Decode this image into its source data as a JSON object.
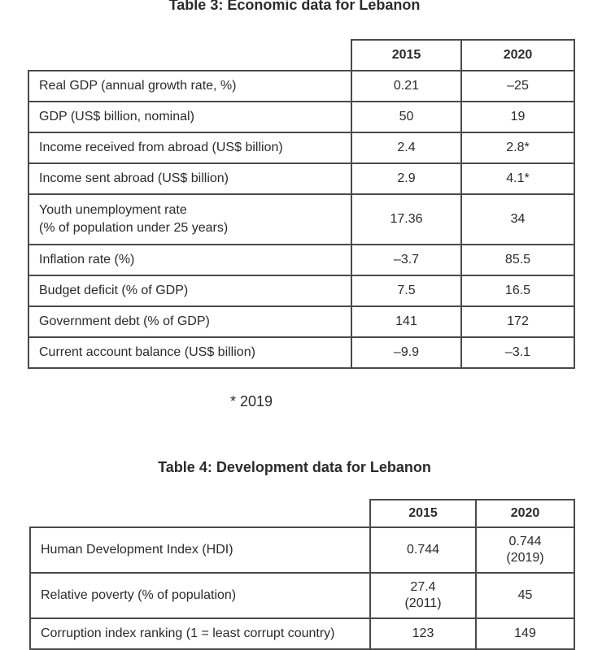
{
  "table3": {
    "title": "Table 3: Economic data for Lebanon",
    "columns": [
      "",
      "2015",
      "2020"
    ],
    "rows": [
      {
        "label": "Real GDP (annual growth rate, %)",
        "v2015": "0.21",
        "v2020": "–25"
      },
      {
        "label": "GDP (US$ billion, nominal)",
        "v2015": "50",
        "v2020": "19"
      },
      {
        "label": "Income received from abroad (US$ billion)",
        "v2015": "2.4",
        "v2020": "2.8*"
      },
      {
        "label": "Income sent abroad (US$ billion)",
        "v2015": "2.9",
        "v2020": "4.1*"
      },
      {
        "label_line1": "Youth unemployment rate",
        "label_line2": "(% of population under 25 years)",
        "v2015": "17.36",
        "v2020": "34"
      },
      {
        "label": "Inflation rate (%)",
        "v2015": "–3.7",
        "v2020": "85.5"
      },
      {
        "label": "Budget deficit (% of GDP)",
        "v2015": "7.5",
        "v2020": "16.5"
      },
      {
        "label": "Government debt (% of GDP)",
        "v2015": "141",
        "v2020": "172"
      },
      {
        "label": "Current account balance (US$ billion)",
        "v2015": "–9.9",
        "v2020": "–3.1"
      }
    ],
    "footnote": "* 2019"
  },
  "table4": {
    "title": "Table 4: Development data for Lebanon",
    "columns": [
      "",
      "2015",
      "2020"
    ],
    "rows": [
      {
        "label": "Human Development Index (HDI)",
        "v2015": "0.744",
        "v2020_line1": "0.744",
        "v2020_line2": "(2019)"
      },
      {
        "label": "Relative poverty (% of population)",
        "v2015_line1": "27.4",
        "v2015_line2": "(2011)",
        "v2020": "45"
      },
      {
        "label": "Corruption index ranking (1 = least corrupt country)",
        "v2015": "123",
        "v2020": "149"
      }
    ]
  }
}
